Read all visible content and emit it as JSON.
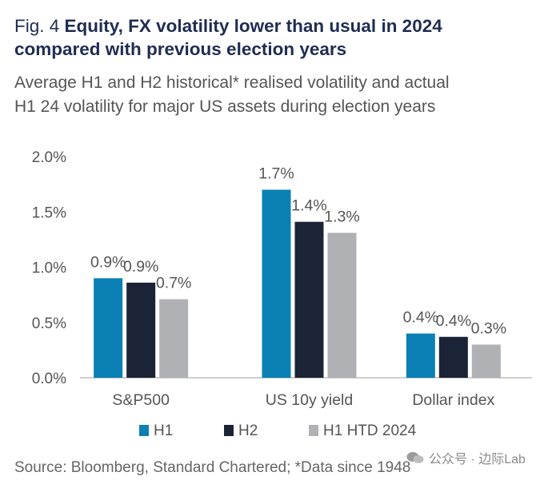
{
  "title": {
    "fig_label": "Fig. 4",
    "headline_line1": "Equity, FX volatility lower than usual in 2024",
    "headline_line2": "compared with previous election years"
  },
  "subtitle": {
    "line1": "Average H1 and H2 historical* realised volatility and actual",
    "line2": "H1 24 volatility for major US assets during election years"
  },
  "source": "Source: Bloomberg, Standard Chartered; *Data since 1948",
  "watermark": "公众号 · 边际Lab",
  "colors": {
    "h1": "#0a80b4",
    "h2": "#1b2436",
    "htd": "#b0b1b5",
    "axis": "#bdbdbd",
    "text": "#555555"
  },
  "chart_data": {
    "type": "bar",
    "categories": [
      "S&P500",
      "US 10y yield",
      "Dollar index"
    ],
    "series": [
      {
        "name": "H1",
        "values": [
          0.9,
          1.7,
          0.4
        ],
        "labels": [
          "0.9%",
          "1.7%",
          "0.4%"
        ],
        "color": "#0a80b4"
      },
      {
        "name": "H2",
        "values": [
          0.86,
          1.41,
          0.37
        ],
        "labels": [
          "0.9%",
          "1.4%",
          "0.4%"
        ],
        "color": "#1b2436"
      },
      {
        "name": "H1 HTD 2024",
        "values": [
          0.71,
          1.31,
          0.3
        ],
        "labels": [
          "0.7%",
          "1.3%",
          "0.3%"
        ],
        "color": "#b0b1b5"
      }
    ],
    "ylim": [
      0,
      2.0
    ],
    "yticks": [
      0,
      0.5,
      1.0,
      1.5,
      2.0
    ],
    "ytick_labels": [
      "0.0%",
      "0.5%",
      "1.0%",
      "1.5%",
      "2.0%"
    ],
    "xlabel": "",
    "ylabel": "",
    "legend_position": "bottom-center",
    "grid": false
  }
}
